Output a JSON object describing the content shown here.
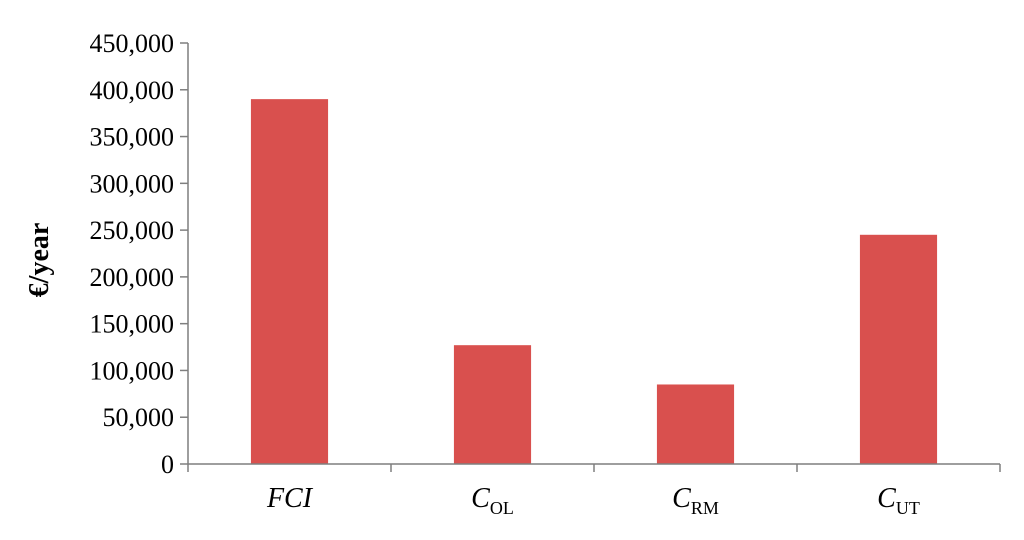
{
  "chart_data": {
    "type": "bar",
    "categories": [
      {
        "main": "FCI",
        "sub": "",
        "italic": true
      },
      {
        "main": "C",
        "sub": "OL",
        "italic": true
      },
      {
        "main": "C",
        "sub": "RM",
        "italic": true
      },
      {
        "main": "C",
        "sub": "UT",
        "italic": true
      }
    ],
    "values": [
      390000,
      127000,
      85000,
      245000
    ],
    "title": "",
    "xlabel": "",
    "ylabel": "€/year",
    "ylim": [
      0,
      450000
    ],
    "yticks": [
      0,
      50000,
      100000,
      150000,
      200000,
      250000,
      300000,
      350000,
      400000,
      450000
    ],
    "ytick_labels": [
      "0",
      "50,000",
      "100,000",
      "150,000",
      "200,000",
      "250,000",
      "300,000",
      "350,000",
      "400,000",
      "450,000"
    ],
    "grid": false,
    "legend": "none",
    "bar_color": "#d9504e"
  }
}
